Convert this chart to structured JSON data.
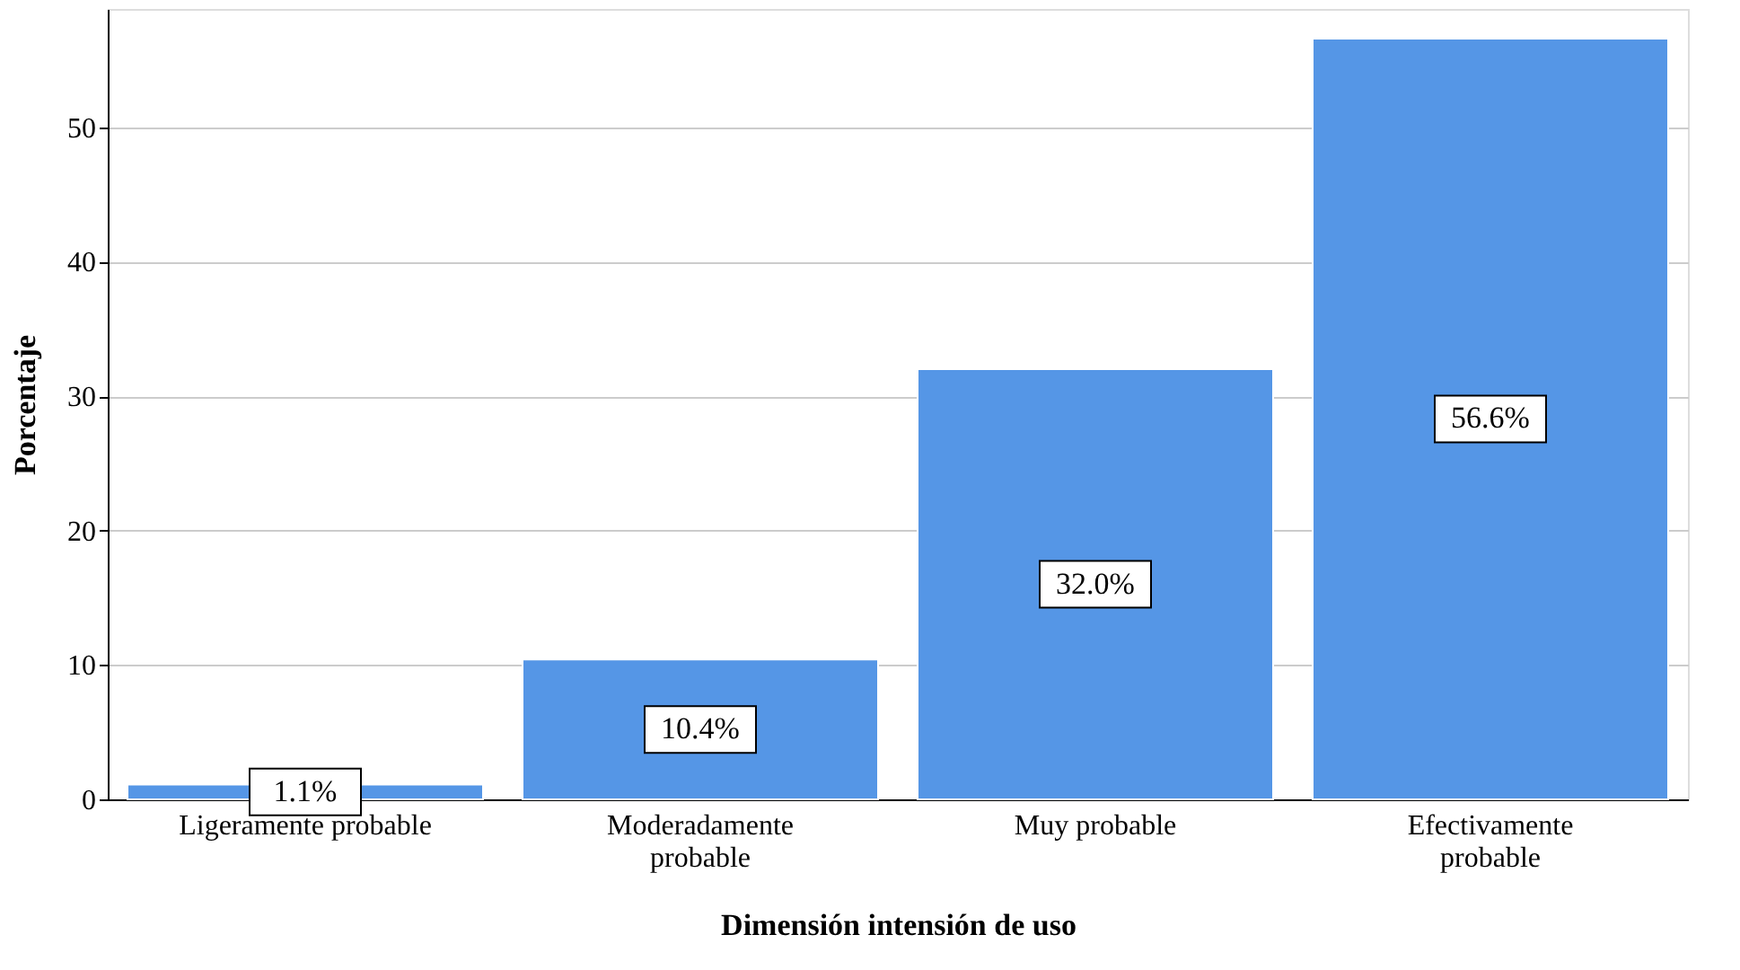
{
  "chart_data": {
    "type": "bar",
    "xlabel": "Dimensión intensión de uso",
    "ylabel": "Porcentaje",
    "categories": [
      "Ligeramente probable",
      "Moderadamente probable",
      "Muy probable",
      "Efectivamente probable"
    ],
    "values": [
      1.1,
      10.4,
      32.0,
      56.6
    ],
    "color": "#5596e6",
    "value_labels": [
      "1.1%",
      "10.4%",
      "32.0%",
      "56.6%"
    ],
    "ylim": [
      0,
      58.8
    ],
    "yticks": [
      0,
      10,
      20,
      30,
      40,
      50
    ],
    "grid": "y"
  }
}
